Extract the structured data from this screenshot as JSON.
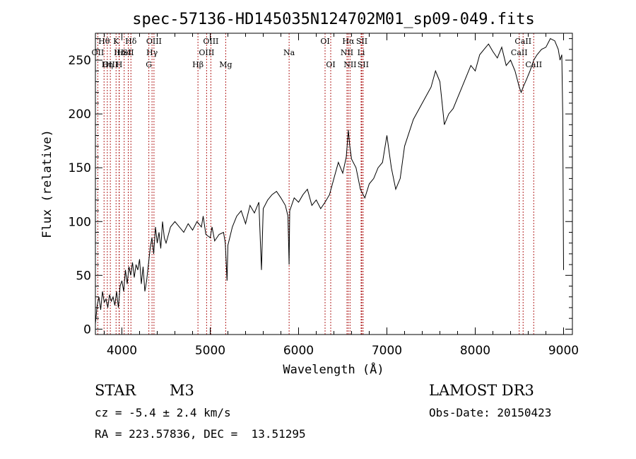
{
  "chart_data": {
    "type": "line",
    "title": "spec-57136-HD145035N124702M01_sp09-049.fits",
    "xlabel": "Wavelength (Å)",
    "ylabel": "Flux (relative)",
    "xlim": [
      3700,
      9100
    ],
    "ylim": [
      -5,
      275
    ],
    "xticks": [
      4000,
      5000,
      6000,
      7000,
      8000,
      9000
    ],
    "yticks": [
      0,
      50,
      100,
      150,
      200,
      250
    ],
    "series": [
      {
        "name": "flux",
        "x": [
          3700,
          3720,
          3740,
          3760,
          3780,
          3800,
          3820,
          3840,
          3860,
          3880,
          3900,
          3920,
          3940,
          3960,
          3980,
          4000,
          4020,
          4040,
          4060,
          4080,
          4100,
          4120,
          4140,
          4160,
          4180,
          4200,
          4220,
          4240,
          4260,
          4280,
          4300,
          4320,
          4340,
          4360,
          4380,
          4400,
          4420,
          4440,
          4460,
          4480,
          4500,
          4550,
          4600,
          4650,
          4700,
          4750,
          4800,
          4850,
          4900,
          4920,
          4950,
          5000,
          5020,
          5050,
          5100,
          5150,
          5170,
          5190,
          5200,
          5250,
          5300,
          5350,
          5400,
          5450,
          5500,
          5550,
          5580,
          5600,
          5650,
          5700,
          5750,
          5800,
          5850,
          5880,
          5893,
          5900,
          5950,
          6000,
          6050,
          6100,
          6150,
          6200,
          6250,
          6300,
          6350,
          6400,
          6450,
          6500,
          6540,
          6563,
          6580,
          6600,
          6650,
          6700,
          6750,
          6800,
          6850,
          6900,
          6950,
          6980,
          7000,
          7020,
          7050,
          7100,
          7150,
          7200,
          7300,
          7400,
          7500,
          7550,
          7600,
          7650,
          7700,
          7750,
          7800,
          7850,
          7900,
          7950,
          8000,
          8050,
          8100,
          8150,
          8200,
          8250,
          8300,
          8350,
          8400,
          8450,
          8498,
          8520,
          8542,
          8580,
          8620,
          8662,
          8700,
          8750,
          8800,
          8850,
          8900,
          8940,
          8960,
          8980,
          8990,
          9000
        ],
        "values": [
          5,
          22,
          30,
          18,
          35,
          25,
          28,
          20,
          32,
          26,
          30,
          22,
          35,
          20,
          40,
          45,
          35,
          55,
          42,
          58,
          50,
          62,
          48,
          60,
          55,
          65,
          42,
          58,
          35,
          45,
          60,
          75,
          85,
          70,
          95,
          80,
          90,
          75,
          100,
          85,
          80,
          95,
          100,
          95,
          90,
          98,
          92,
          100,
          95,
          105,
          88,
          85,
          95,
          82,
          88,
          90,
          80,
          45,
          78,
          95,
          105,
          110,
          98,
          115,
          108,
          118,
          55,
          112,
          120,
          125,
          128,
          122,
          115,
          105,
          60,
          110,
          122,
          118,
          125,
          130,
          115,
          120,
          112,
          118,
          125,
          140,
          155,
          145,
          160,
          185,
          170,
          158,
          150,
          130,
          122,
          135,
          140,
          150,
          155,
          170,
          180,
          168,
          150,
          130,
          140,
          170,
          195,
          210,
          225,
          240,
          230,
          190,
          200,
          205,
          215,
          225,
          235,
          245,
          240,
          255,
          260,
          265,
          258,
          252,
          262,
          245,
          250,
          240,
          225,
          220,
          225,
          232,
          240,
          250,
          255,
          260,
          262,
          270,
          268,
          260,
          250,
          255,
          200,
          55
        ]
      }
    ],
    "lines": [
      {
        "name": "Hθ",
        "wl": 3798,
        "row": 1
      },
      {
        "name": "OII",
        "wl": 3727,
        "row": 2
      },
      {
        "name": "OIII",
        "wl": 3869,
        "row": 3
      },
      {
        "name": "K",
        "wl": 3934,
        "row": 1
      },
      {
        "name": "Hε",
        "wl": 3970,
        "row": 2
      },
      {
        "name": "Hη",
        "wl": 3835,
        "row": 3
      },
      {
        "name": "Hδ",
        "wl": 4102,
        "row": 1
      },
      {
        "name": "HeI",
        "wl": 4026,
        "row": 2
      },
      {
        "name": "SII",
        "wl": 4072,
        "row": 2
      },
      {
        "name": "H",
        "wl": 3968,
        "row": 3
      },
      {
        "name": "OIII",
        "wl": 4363,
        "row": 1
      },
      {
        "name": "Hγ",
        "wl": 4341,
        "row": 2
      },
      {
        "name": "G",
        "wl": 4305,
        "row": 3
      },
      {
        "name": "OIII",
        "wl": 5007,
        "row": 1
      },
      {
        "name": "OIII",
        "wl": 4959,
        "row": 2
      },
      {
        "name": "Hβ",
        "wl": 4861,
        "row": 3
      },
      {
        "name": "Mg",
        "wl": 5175,
        "row": 3
      },
      {
        "name": "Na",
        "wl": 5893,
        "row": 2
      },
      {
        "name": "OI",
        "wl": 6300,
        "row": 1
      },
      {
        "name": "OI",
        "wl": 6364,
        "row": 3
      },
      {
        "name": "Hα",
        "wl": 6563,
        "row": 1
      },
      {
        "name": "NII",
        "wl": 6548,
        "row": 2
      },
      {
        "name": "NII",
        "wl": 6583,
        "row": 3
      },
      {
        "name": "SII",
        "wl": 6716,
        "row": 1
      },
      {
        "name": "Li",
        "wl": 6708,
        "row": 2
      },
      {
        "name": "SII",
        "wl": 6731,
        "row": 3
      },
      {
        "name": "CaII",
        "wl": 8542,
        "row": 1
      },
      {
        "name": "CaII",
        "wl": 8498,
        "row": 2
      },
      {
        "name": "CaII",
        "wl": 8662,
        "row": 3
      }
    ]
  },
  "info": {
    "object_class": "STAR",
    "subclass": "M3",
    "survey": "LAMOST DR3",
    "cz": "cz = -5.4 ± 2.4 km/s",
    "obs_date": "Obs-Date: 20150423",
    "coords": "RA = 223.57836, DEC =  13.51295"
  },
  "colors": {
    "line_marker": "#b22222",
    "spectrum": "#000000",
    "axes": "#000000"
  }
}
